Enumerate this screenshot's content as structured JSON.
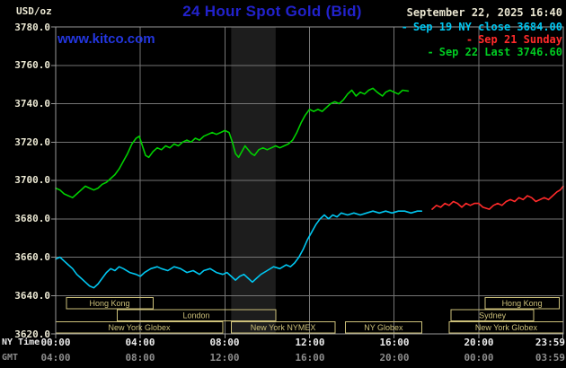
{
  "header": {
    "units_label": "USD/oz",
    "title": "24 Hour Spot Gold (Bid)",
    "datetime": "September 22, 2025 16:40",
    "watermark": "www.kitco.com"
  },
  "legend": [
    {
      "marker": "-",
      "label": "Sep 19 NY close 3684.00",
      "color": "#00c6f0"
    },
    {
      "marker": "-",
      "label": "Sep 21 Sunday",
      "color": "#ff2a2a"
    },
    {
      "marker": "-",
      "label": "Sep 22 Last 3746.60",
      "color": "#00cc22"
    }
  ],
  "axes": {
    "y_ticks": [
      "3780.0",
      "3760.0",
      "3740.0",
      "3720.0",
      "3700.0",
      "3680.0",
      "3660.0",
      "3640.0",
      "3620.0"
    ],
    "x_row1_label": "NY Time",
    "x_row2_label": "GMT",
    "x_ticks_ny": [
      "00:00",
      "04:00",
      "08:00",
      "12:00",
      "16:00",
      "20:00",
      "23:59"
    ],
    "x_ticks_gmt": [
      "04:00",
      "08:00",
      "12:00",
      "16:00",
      "20:00",
      "00:00",
      "03:59"
    ]
  },
  "chart_data": {
    "type": "line",
    "title": "24 Hour Spot Gold (Bid)",
    "x_unit": "hour (NY time)",
    "xlim": [
      0,
      24
    ],
    "ylim": [
      3620,
      3780
    ],
    "background": "#000000",
    "grid": {
      "color": "#757575",
      "x_hours": [
        4,
        8,
        12,
        16,
        20
      ],
      "y_values": [
        3640,
        3660,
        3680,
        3700,
        3720,
        3740,
        3760
      ]
    },
    "border_color": "#989898",
    "tick_color": "#989898",
    "x_tick_hours": [
      0,
      4,
      8,
      12,
      16,
      20,
      23.98
    ],
    "y_tick_values": [
      3620,
      3640,
      3660,
      3680,
      3700,
      3720,
      3740,
      3760,
      3780
    ],
    "bands": [
      {
        "start": 8.3,
        "end": 10.4,
        "color": "#1d1d1d"
      }
    ],
    "sessions": {
      "color": "#cdc17a",
      "items": [
        {
          "label": "Hong Kong",
          "row": 0,
          "start": 0.5,
          "end": 4.6
        },
        {
          "label": "Hong Kong",
          "row": 0,
          "start": 20.3,
          "end": 23.8
        },
        {
          "label": "London",
          "row": 1,
          "start": 2.9,
          "end": 10.4
        },
        {
          "label": "Sydney",
          "row": 1,
          "start": 18.7,
          "end": 22.6
        },
        {
          "label": "New York Globex",
          "row": 2,
          "start": 0,
          "end": 7.9
        },
        {
          "label": "New York NYMEX",
          "row": 2,
          "start": 8.3,
          "end": 13.2
        },
        {
          "label": "NY Globex",
          "row": 2,
          "start": 13.7,
          "end": 17.3
        },
        {
          "label": "New York Globex",
          "row": 2,
          "start": 18.6,
          "end": 24
        }
      ]
    },
    "series": [
      {
        "id": "sep19-ny-close",
        "name": "Sep 19 NY close 3684.00",
        "color": "#00c6f0",
        "points": [
          [
            0,
            3659
          ],
          [
            0.2,
            3660
          ],
          [
            0.4,
            3658
          ],
          [
            0.6,
            3656
          ],
          [
            0.8,
            3654
          ],
          [
            1.0,
            3651
          ],
          [
            1.2,
            3649
          ],
          [
            1.4,
            3647
          ],
          [
            1.6,
            3645
          ],
          [
            1.8,
            3644
          ],
          [
            2.0,
            3646
          ],
          [
            2.2,
            3649
          ],
          [
            2.4,
            3652
          ],
          [
            2.6,
            3654
          ],
          [
            2.8,
            3653
          ],
          [
            3.0,
            3655
          ],
          [
            3.2,
            3654
          ],
          [
            3.5,
            3652
          ],
          [
            3.8,
            3651
          ],
          [
            4.0,
            3650
          ],
          [
            4.2,
            3652
          ],
          [
            4.5,
            3654
          ],
          [
            4.8,
            3655
          ],
          [
            5.0,
            3654
          ],
          [
            5.3,
            3653
          ],
          [
            5.6,
            3655
          ],
          [
            5.9,
            3654
          ],
          [
            6.2,
            3652
          ],
          [
            6.5,
            3653
          ],
          [
            6.8,
            3651
          ],
          [
            7.0,
            3653
          ],
          [
            7.3,
            3654
          ],
          [
            7.6,
            3652
          ],
          [
            7.9,
            3651
          ],
          [
            8.1,
            3652
          ],
          [
            8.3,
            3650
          ],
          [
            8.5,
            3648
          ],
          [
            8.7,
            3650
          ],
          [
            8.9,
            3651
          ],
          [
            9.1,
            3649
          ],
          [
            9.3,
            3647
          ],
          [
            9.5,
            3649
          ],
          [
            9.7,
            3651
          ],
          [
            10.0,
            3653
          ],
          [
            10.3,
            3655
          ],
          [
            10.6,
            3654
          ],
          [
            10.9,
            3656
          ],
          [
            11.1,
            3655
          ],
          [
            11.3,
            3657
          ],
          [
            11.5,
            3660
          ],
          [
            11.7,
            3664
          ],
          [
            11.9,
            3669
          ],
          [
            12.1,
            3673
          ],
          [
            12.3,
            3677
          ],
          [
            12.5,
            3680
          ],
          [
            12.7,
            3682
          ],
          [
            12.9,
            3680
          ],
          [
            13.1,
            3682
          ],
          [
            13.3,
            3681
          ],
          [
            13.5,
            3683
          ],
          [
            13.8,
            3682
          ],
          [
            14.1,
            3683
          ],
          [
            14.4,
            3682
          ],
          [
            14.7,
            3683
          ],
          [
            15.0,
            3684
          ],
          [
            15.3,
            3683
          ],
          [
            15.6,
            3684
          ],
          [
            15.9,
            3683
          ],
          [
            16.2,
            3684
          ],
          [
            16.5,
            3684
          ],
          [
            16.8,
            3683
          ],
          [
            17.1,
            3684
          ],
          [
            17.3,
            3684
          ]
        ]
      },
      {
        "id": "sep21-sunday",
        "name": "Sep 21 Sunday",
        "color": "#ff2a2a",
        "points": [
          [
            17.8,
            3685
          ],
          [
            18.0,
            3687
          ],
          [
            18.2,
            3686
          ],
          [
            18.4,
            3688
          ],
          [
            18.6,
            3687
          ],
          [
            18.8,
            3689
          ],
          [
            19.0,
            3688
          ],
          [
            19.2,
            3686
          ],
          [
            19.4,
            3688
          ],
          [
            19.6,
            3687
          ],
          [
            19.8,
            3688
          ],
          [
            20.0,
            3688
          ],
          [
            20.2,
            3686
          ],
          [
            20.5,
            3685
          ],
          [
            20.7,
            3687
          ],
          [
            20.9,
            3688
          ],
          [
            21.1,
            3687
          ],
          [
            21.3,
            3689
          ],
          [
            21.5,
            3690
          ],
          [
            21.7,
            3689
          ],
          [
            21.9,
            3691
          ],
          [
            22.1,
            3690
          ],
          [
            22.3,
            3692
          ],
          [
            22.5,
            3691
          ],
          [
            22.7,
            3689
          ],
          [
            22.9,
            3690
          ],
          [
            23.1,
            3691
          ],
          [
            23.3,
            3690
          ],
          [
            23.5,
            3692
          ],
          [
            23.7,
            3694
          ],
          [
            23.85,
            3695
          ],
          [
            24,
            3697
          ]
        ]
      },
      {
        "id": "sep22-today",
        "name": "Sep 22 Last 3746.60",
        "color": "#00d000",
        "points": [
          [
            0,
            3696
          ],
          [
            0.2,
            3695
          ],
          [
            0.4,
            3693
          ],
          [
            0.6,
            3692
          ],
          [
            0.8,
            3691
          ],
          [
            1.0,
            3693
          ],
          [
            1.2,
            3695
          ],
          [
            1.4,
            3697
          ],
          [
            1.6,
            3696
          ],
          [
            1.8,
            3695
          ],
          [
            2.0,
            3696
          ],
          [
            2.2,
            3698
          ],
          [
            2.4,
            3699
          ],
          [
            2.6,
            3701
          ],
          [
            2.8,
            3703
          ],
          [
            3.0,
            3706
          ],
          [
            3.2,
            3710
          ],
          [
            3.4,
            3714
          ],
          [
            3.6,
            3719
          ],
          [
            3.8,
            3722
          ],
          [
            3.95,
            3723
          ],
          [
            4.1,
            3718
          ],
          [
            4.25,
            3713
          ],
          [
            4.4,
            3712
          ],
          [
            4.6,
            3715
          ],
          [
            4.8,
            3717
          ],
          [
            5.0,
            3716
          ],
          [
            5.2,
            3718
          ],
          [
            5.4,
            3717
          ],
          [
            5.6,
            3719
          ],
          [
            5.8,
            3718
          ],
          [
            6.0,
            3720
          ],
          [
            6.2,
            3721
          ],
          [
            6.4,
            3720
          ],
          [
            6.6,
            3722
          ],
          [
            6.8,
            3721
          ],
          [
            7.0,
            3723
          ],
          [
            7.2,
            3724
          ],
          [
            7.4,
            3725
          ],
          [
            7.6,
            3724
          ],
          [
            7.8,
            3725
          ],
          [
            8.0,
            3726
          ],
          [
            8.2,
            3725
          ],
          [
            8.35,
            3720
          ],
          [
            8.5,
            3714
          ],
          [
            8.65,
            3712
          ],
          [
            8.8,
            3715
          ],
          [
            8.95,
            3718
          ],
          [
            9.1,
            3716
          ],
          [
            9.25,
            3714
          ],
          [
            9.4,
            3713
          ],
          [
            9.6,
            3716
          ],
          [
            9.8,
            3717
          ],
          [
            10.0,
            3716
          ],
          [
            10.2,
            3717
          ],
          [
            10.4,
            3718
          ],
          [
            10.6,
            3717
          ],
          [
            10.8,
            3718
          ],
          [
            11.0,
            3719
          ],
          [
            11.2,
            3721
          ],
          [
            11.4,
            3725
          ],
          [
            11.6,
            3730
          ],
          [
            11.8,
            3734
          ],
          [
            12.0,
            3737
          ],
          [
            12.2,
            3736
          ],
          [
            12.4,
            3737
          ],
          [
            12.6,
            3736
          ],
          [
            12.8,
            3738
          ],
          [
            13.0,
            3740
          ],
          [
            13.2,
            3741
          ],
          [
            13.4,
            3740
          ],
          [
            13.6,
            3742
          ],
          [
            13.8,
            3745
          ],
          [
            14.0,
            3747
          ],
          [
            14.2,
            3744
          ],
          [
            14.4,
            3746
          ],
          [
            14.6,
            3745
          ],
          [
            14.8,
            3747
          ],
          [
            15.0,
            3748
          ],
          [
            15.2,
            3746
          ],
          [
            15.45,
            3744
          ],
          [
            15.6,
            3746
          ],
          [
            15.8,
            3747
          ],
          [
            16.0,
            3746
          ],
          [
            16.2,
            3745
          ],
          [
            16.4,
            3747
          ],
          [
            16.67,
            3746.6
          ]
        ]
      }
    ]
  }
}
